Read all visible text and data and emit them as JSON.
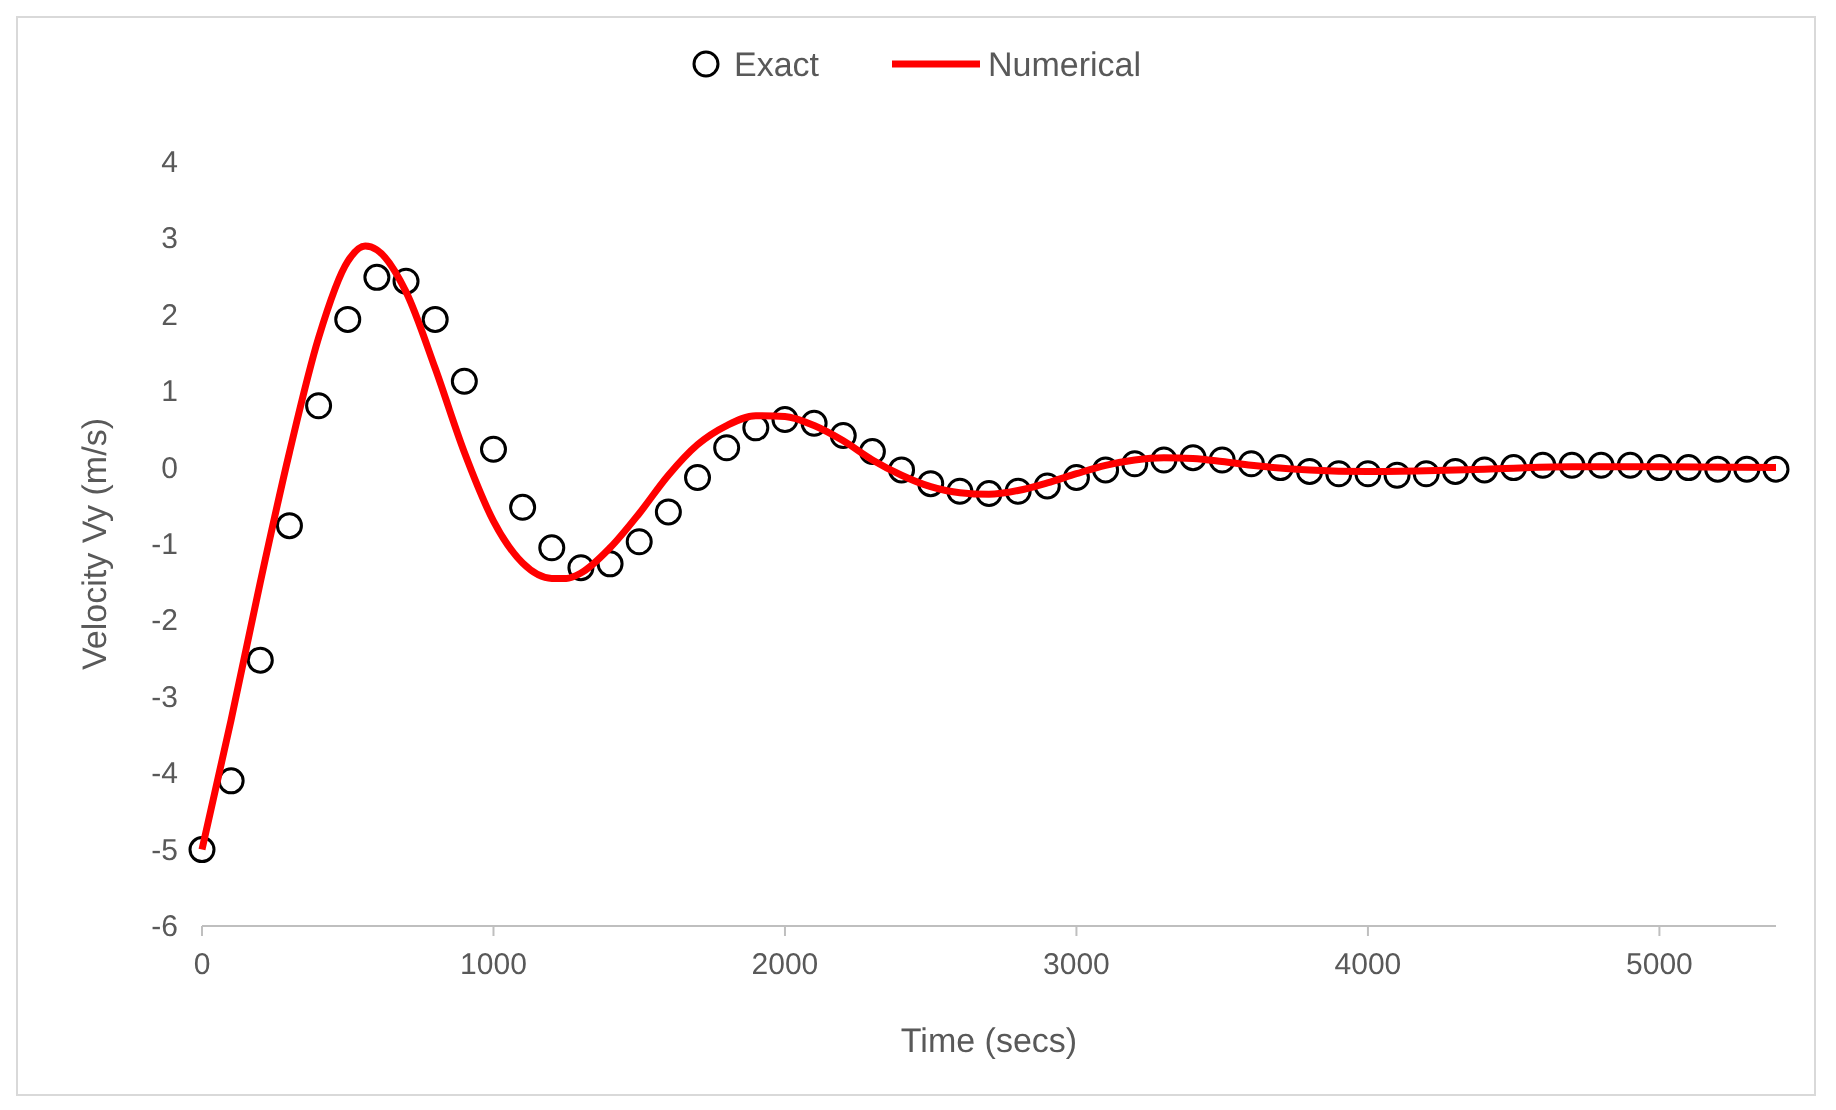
{
  "chart_data": {
    "type": "scatter",
    "xlabel": "Time (secs)",
    "ylabel": "Velocity Vy (m/s)",
    "xlim": [
      0,
      5400
    ],
    "ylim": [
      -6,
      4
    ],
    "xticks": [
      0,
      1000,
      2000,
      3000,
      4000,
      5000
    ],
    "yticks": [
      -6,
      -5,
      -4,
      -3,
      -2,
      -1,
      0,
      1,
      2,
      3,
      4
    ],
    "grid": false,
    "legend": "top",
    "series": [
      {
        "name": "Exact",
        "marker": "circle",
        "color": "#000000",
        "x": [
          0,
          100,
          200,
          300,
          400,
          500,
          600,
          700,
          800,
          900,
          1000,
          1100,
          1200,
          1300,
          1400,
          1500,
          1600,
          1700,
          1800,
          1900,
          2000,
          2100,
          2200,
          2300,
          2400,
          2500,
          2600,
          2700,
          2800,
          2900,
          3000,
          3100,
          3200,
          3300,
          3400,
          3500,
          3600,
          3700,
          3800,
          3900,
          4000,
          4100,
          4200,
          4300,
          4400,
          4500,
          4600,
          4700,
          4800,
          4900,
          5000,
          5100,
          5200,
          5300,
          5400
        ],
        "values": [
          -5,
          -4.1,
          -2.52,
          -0.76,
          0.81,
          1.94,
          2.49,
          2.44,
          1.94,
          1.13,
          0.24,
          -0.52,
          -1.05,
          -1.31,
          -1.26,
          -0.97,
          -0.58,
          -0.13,
          0.26,
          0.52,
          0.63,
          0.58,
          0.42,
          0.21,
          -0.03,
          -0.21,
          -0.31,
          -0.34,
          -0.31,
          -0.24,
          -0.13,
          -0.03,
          0.05,
          0.1,
          0.13,
          0.1,
          0.05,
          0,
          -0.05,
          -0.08,
          -0.08,
          -0.1,
          -0.08,
          -0.05,
          -0.03,
          0,
          0.03,
          0.03,
          0.03,
          0.03,
          0,
          0,
          -0.02,
          -0.02,
          -0.02
        ]
      },
      {
        "name": "Numerical",
        "type": "line",
        "marker": "none",
        "line_style": "solid",
        "color": "#ff0000",
        "x": [
          0,
          100,
          200,
          300,
          400,
          500,
          560,
          600,
          700,
          800,
          900,
          1000,
          1100,
          1200,
          1250,
          1300,
          1400,
          1500,
          1600,
          1700,
          1800,
          1900,
          2000,
          2100,
          2200,
          2300,
          2400,
          2500,
          2600,
          2700,
          2800,
          2900,
          3000,
          3100,
          3200,
          3300,
          3400,
          3500,
          3600,
          3800,
          4000,
          4200,
          4400,
          4700,
          5000,
          5400
        ],
        "values": [
          -5,
          -3.3,
          -1.5,
          0.2,
          1.7,
          2.7,
          2.9,
          2.85,
          2.3,
          1.3,
          0.2,
          -0.7,
          -1.25,
          -1.45,
          -1.45,
          -1.38,
          -1.05,
          -0.6,
          -0.1,
          0.3,
          0.55,
          0.68,
          0.67,
          0.55,
          0.35,
          0.1,
          -0.1,
          -0.25,
          -0.33,
          -0.35,
          -0.3,
          -0.2,
          -0.08,
          0.03,
          0.1,
          0.13,
          0.12,
          0.08,
          0.03,
          -0.03,
          -0.05,
          -0.04,
          -0.02,
          0.01,
          0.01,
          0
        ]
      }
    ]
  }
}
